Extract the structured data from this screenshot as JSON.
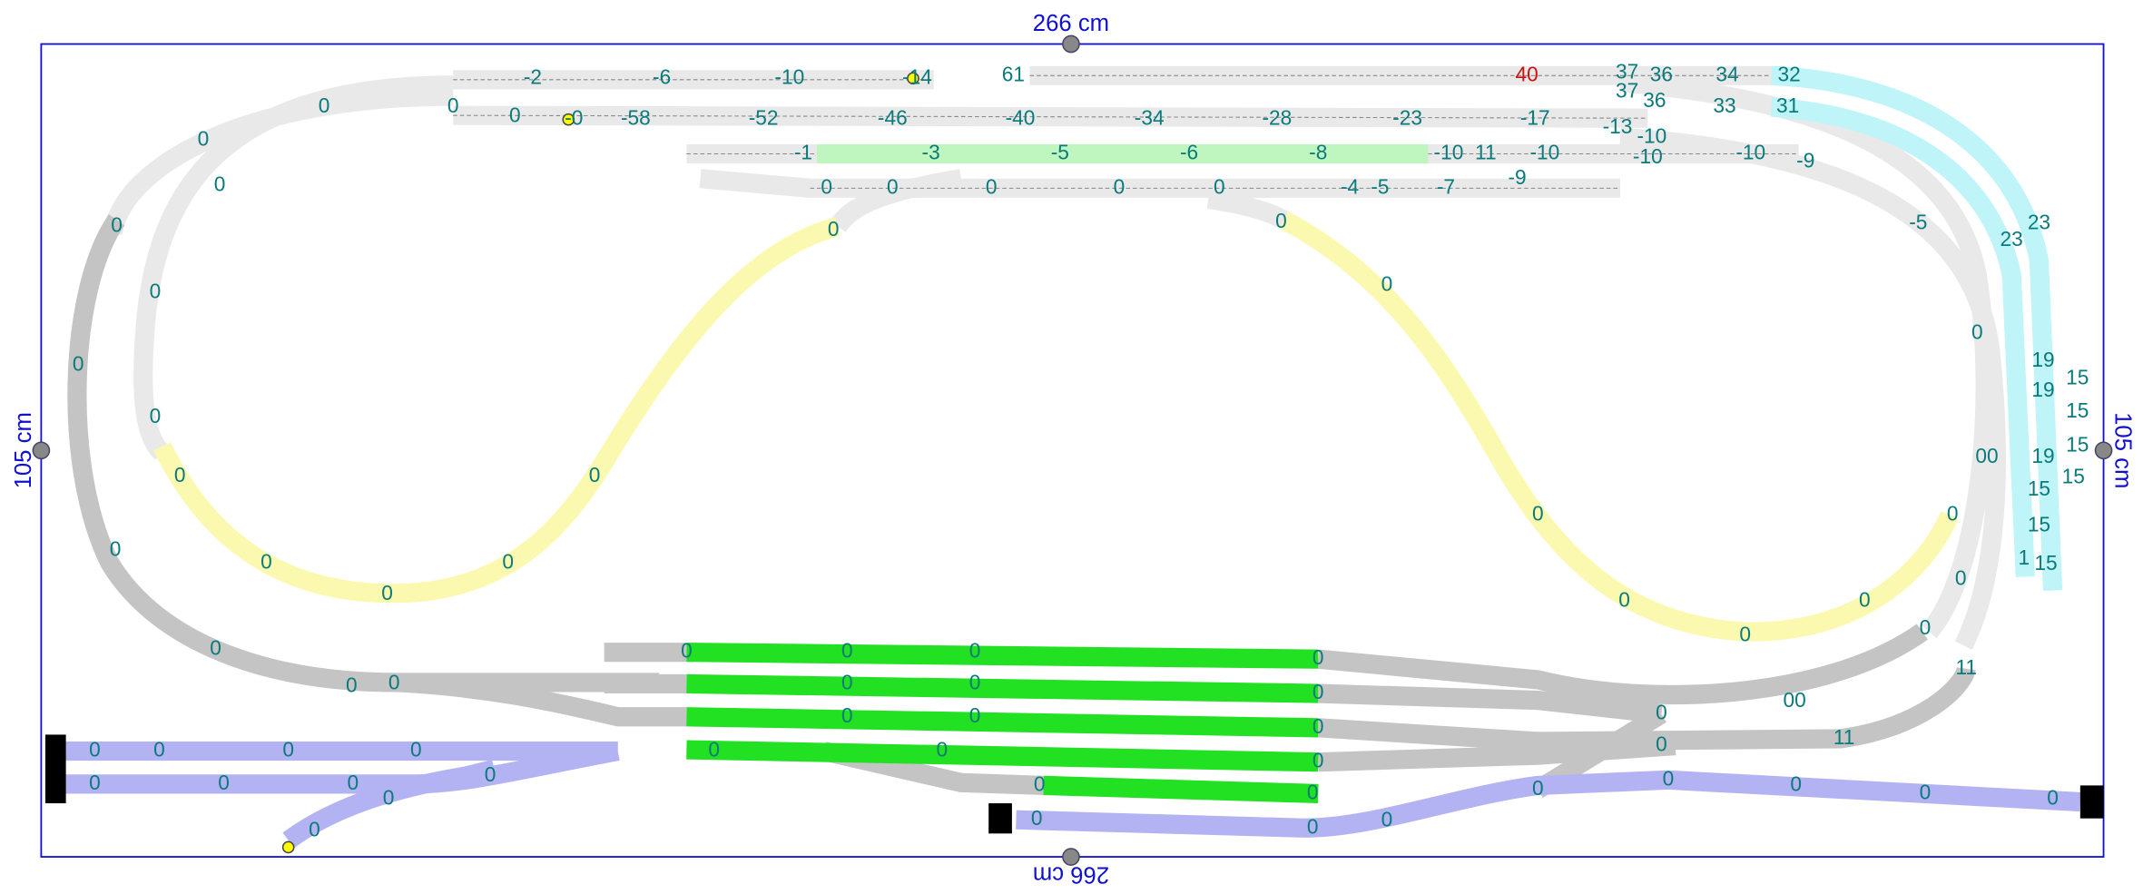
{
  "dimensions": {
    "top": "266 cm",
    "bottom": "266 cm",
    "left": "105 cm",
    "right": "105 cm"
  },
  "height_labels": [
    "-2",
    "-6",
    "-10",
    "-14",
    "61",
    "40",
    "37",
    "36",
    "34",
    "32",
    "37",
    "36",
    "33",
    "31",
    "-0",
    "-58",
    "-52",
    "-46",
    "-40",
    "-34",
    "-28",
    "-23",
    "-17",
    "-13",
    "-10",
    "-1",
    "-3",
    "-5",
    "-6",
    "-8",
    "-10",
    "11",
    "-10",
    "-10",
    "-10",
    "-9",
    "0",
    "0",
    "0",
    "0",
    "0",
    "-4",
    "-5",
    "-7",
    "-9",
    "0",
    "0",
    "0",
    "0",
    "0",
    "0",
    "0",
    "0",
    "0",
    "0",
    "0",
    "0",
    "0",
    "0",
    "0",
    "0",
    "0",
    "0",
    "-5",
    "23",
    "23",
    "0",
    "19",
    "15",
    "19",
    "15",
    "00",
    "19",
    "15",
    "15",
    "15",
    "0",
    "15",
    "1",
    "15",
    "0",
    "0",
    "0",
    "0",
    "0",
    "0",
    "11",
    "00",
    "11",
    "0",
    "0",
    "0",
    "0",
    "0",
    "0",
    "0",
    "0",
    "0",
    "0",
    "0",
    "0",
    "0",
    "0",
    "0",
    "0",
    "0",
    "0",
    "0",
    "0",
    "0",
    "0",
    "0",
    "0",
    "0",
    "0",
    "0",
    "0",
    "0",
    "0",
    "0",
    "0",
    "0",
    "0",
    "0",
    "0",
    "0",
    "0"
  ]
}
